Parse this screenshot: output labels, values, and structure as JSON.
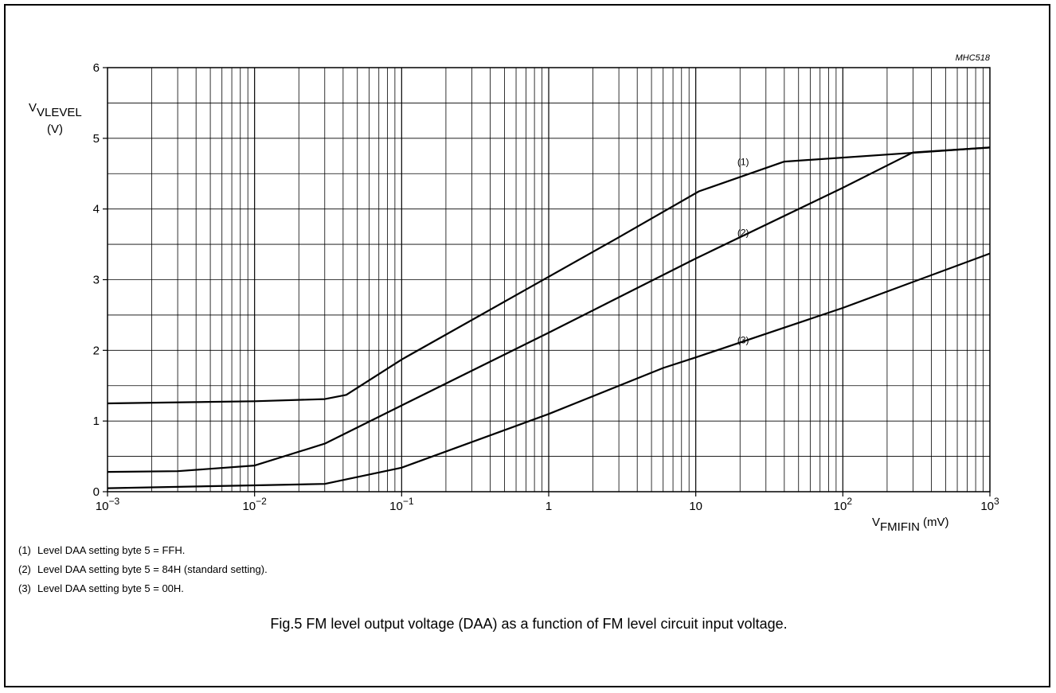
{
  "chart_data": {
    "type": "line",
    "figure_code": "MHC518",
    "x_scale": "log",
    "xlim": [
      0.001,
      1000
    ],
    "ylim": [
      0,
      6
    ],
    "y_ticks": [
      {
        "v": 0,
        "label": "0"
      },
      {
        "v": 1,
        "label": "1"
      },
      {
        "v": 2,
        "label": "2"
      },
      {
        "v": 3,
        "label": "3"
      },
      {
        "v": 4,
        "label": "4"
      },
      {
        "v": 5,
        "label": "5"
      },
      {
        "v": 6,
        "label": "6"
      }
    ],
    "x_ticks": [
      {
        "v": 0.001,
        "base": "10",
        "exp": "−3"
      },
      {
        "v": 0.01,
        "base": "10",
        "exp": "−2"
      },
      {
        "v": 0.1,
        "base": "10",
        "exp": "−1"
      },
      {
        "v": 1,
        "base": "1",
        "exp": ""
      },
      {
        "v": 10,
        "base": "10",
        "exp": ""
      },
      {
        "v": 100,
        "base": "10",
        "exp": "2"
      },
      {
        "v": 1000,
        "base": "10",
        "exp": "3"
      }
    ],
    "ylabel": {
      "main": "V",
      "sub": "VLEVEL",
      "unit": "(V)"
    },
    "xlabel": {
      "main": "V",
      "sub": "FMIFIN",
      "unit": "(mV)"
    },
    "grid": true,
    "series": [
      {
        "name": "(1)",
        "label_at": [
          21,
          4.62
        ],
        "points": [
          [
            0.001,
            1.25
          ],
          [
            0.01,
            1.28
          ],
          [
            0.03,
            1.31
          ],
          [
            0.042,
            1.37
          ],
          [
            0.1,
            1.87
          ],
          [
            3,
            3.6
          ],
          [
            10.5,
            4.25
          ],
          [
            40,
            4.67
          ],
          [
            1000,
            4.87
          ]
        ]
      },
      {
        "name": "(2)",
        "label_at": [
          21,
          3.62
        ],
        "points": [
          [
            0.001,
            0.28
          ],
          [
            0.003,
            0.29
          ],
          [
            0.01,
            0.37
          ],
          [
            0.03,
            0.68
          ],
          [
            0.1,
            1.22
          ],
          [
            1,
            2.25
          ],
          [
            10,
            3.3
          ],
          [
            100,
            4.3
          ],
          [
            300,
            4.8
          ],
          [
            1000,
            4.87
          ]
        ]
      },
      {
        "name": "(3)",
        "label_at": [
          21,
          2.1
        ],
        "points": [
          [
            0.001,
            0.05
          ],
          [
            0.01,
            0.09
          ],
          [
            0.03,
            0.11
          ],
          [
            0.1,
            0.34
          ],
          [
            1,
            1.1
          ],
          [
            6,
            1.75
          ],
          [
            10,
            1.9
          ],
          [
            100,
            2.6
          ],
          [
            1000,
            3.37
          ]
        ]
      }
    ]
  },
  "notes": [
    {
      "num": "(1)",
      "text": "Level DAA setting byte 5 = FFH."
    },
    {
      "num": "(2)",
      "text": "Level DAA setting byte 5 = 84H (standard setting)."
    },
    {
      "num": "(3)",
      "text": "Level DAA setting byte 5 = 00H."
    }
  ],
  "caption": "Fig.5  FM level output voltage (DAA) as a function of FM level circuit input voltage."
}
